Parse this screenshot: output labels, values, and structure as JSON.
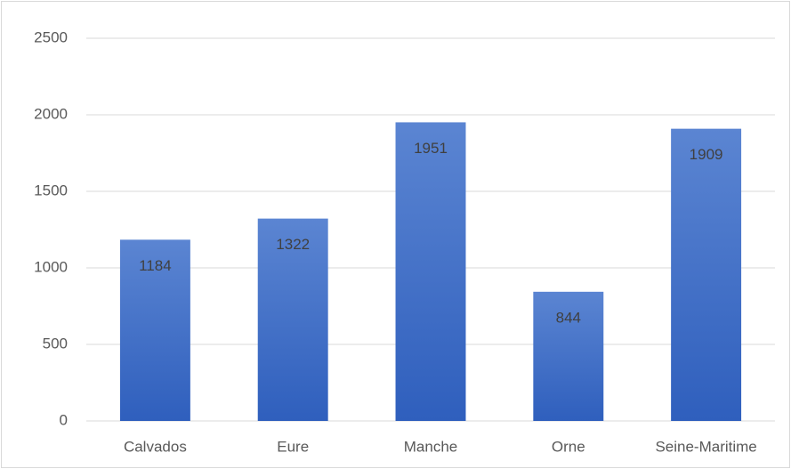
{
  "chart_data": {
    "type": "bar",
    "categories": [
      "Calvados",
      "Eure",
      "Manche",
      "Orne",
      "Seine-Maritime"
    ],
    "values": [
      1184,
      1322,
      1951,
      844,
      1909
    ],
    "color": "#4472c4",
    "ylim": [
      0,
      2500
    ],
    "yticks": [
      0,
      500,
      1000,
      1500,
      2000,
      2500
    ],
    "grid": true
  }
}
